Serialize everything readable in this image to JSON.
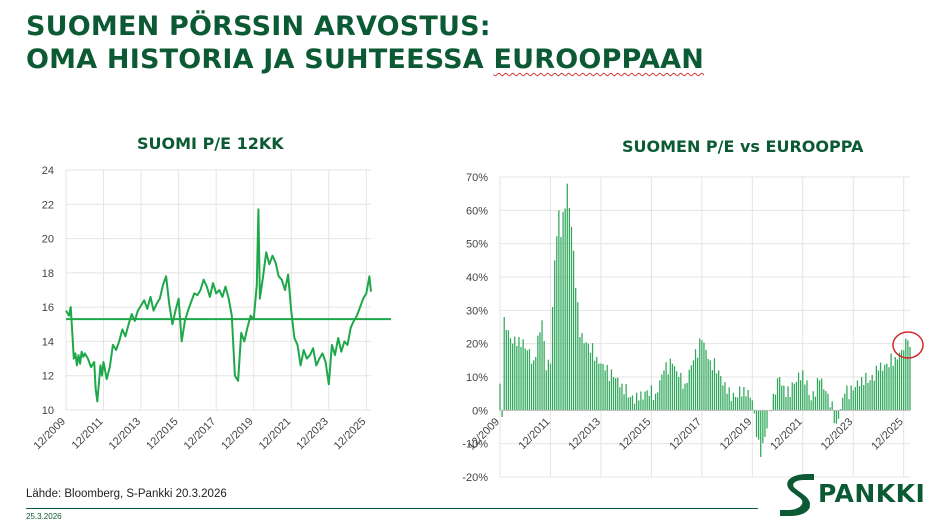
{
  "page": {
    "title_line1": "SUOMEN PÖRSSIN ARVOSTUS:",
    "title_line2_part1": "OMA HISTORIA JA SUHTEESSA ",
    "title_line2_part2": "EUROOPPAAN",
    "source": "Lähde: Bloomberg, S-Pankki 20.3.2026",
    "date": "25.3.2026",
    "logo_text": "PANKKI",
    "logo_icon": "s-pankki-s-logo-icon"
  },
  "colors": {
    "brand": "#0b5a34",
    "line": "#1ea84a",
    "bar": "#2fa85a",
    "highlight": "#d02a2a"
  },
  "chart_data": [
    {
      "type": "line",
      "title": "SUOMI P/E 12KK",
      "x_ticks": [
        "12/2009",
        "12/2011",
        "12/2013",
        "12/2015",
        "12/2017",
        "12/2019",
        "12/2021",
        "12/2023",
        "12/2025"
      ],
      "y_ticks": [
        "10",
        "12",
        "14",
        "16",
        "18",
        "20",
        "22",
        "24"
      ],
      "ylim": [
        10,
        24
      ],
      "xlim": [
        "2009-12",
        "2026-03"
      ],
      "reference_line": 15.3,
      "grid": true,
      "series": [
        {
          "x": [
            "2009-12",
            "2010-02",
            "2010-03",
            "2010-04",
            "2010-05",
            "2010-06",
            "2010-07",
            "2010-08",
            "2010-09",
            "2010-10",
            "2010-11",
            "2010-12",
            "2011-02",
            "2011-04",
            "2011-06",
            "2011-07",
            "2011-08",
            "2011-09",
            "2011-10",
            "2011-11",
            "2011-12",
            "2012-02",
            "2012-04",
            "2012-06",
            "2012-08",
            "2012-10",
            "2012-12",
            "2013-02",
            "2013-04",
            "2013-06",
            "2013-08",
            "2013-10",
            "2013-12",
            "2014-02",
            "2014-04",
            "2014-06",
            "2014-08",
            "2014-10",
            "2014-12",
            "2015-02",
            "2015-04",
            "2015-06",
            "2015-08",
            "2015-10",
            "2015-12",
            "2016-02",
            "2016-04",
            "2016-06",
            "2016-08",
            "2016-10",
            "2016-12",
            "2017-02",
            "2017-04",
            "2017-06",
            "2017-08",
            "2017-10",
            "2017-12",
            "2018-02",
            "2018-04",
            "2018-06",
            "2018-08",
            "2018-10",
            "2018-12",
            "2019-02",
            "2019-04",
            "2019-06",
            "2019-08",
            "2019-10",
            "2019-12",
            "2020-02",
            "2020-03",
            "2020-04",
            "2020-06",
            "2020-08",
            "2020-10",
            "2020-12",
            "2021-02",
            "2021-04",
            "2021-06",
            "2021-08",
            "2021-10",
            "2021-12",
            "2022-02",
            "2022-04",
            "2022-06",
            "2022-08",
            "2022-10",
            "2022-12",
            "2023-02",
            "2023-04",
            "2023-06",
            "2023-08",
            "2023-10",
            "2023-12",
            "2024-02",
            "2024-04",
            "2024-06",
            "2024-08",
            "2024-10",
            "2024-12",
            "2025-02",
            "2025-04",
            "2025-06",
            "2025-08",
            "2025-10",
            "2025-12",
            "2026-02",
            "2026-03"
          ],
          "y": [
            15.8,
            15.5,
            16.0,
            14.5,
            13.0,
            13.3,
            12.6,
            13.2,
            12.7,
            13.4,
            13.1,
            13.3,
            13.0,
            12.5,
            12.8,
            11.2,
            10.5,
            11.5,
            12.6,
            12.0,
            12.8,
            11.8,
            12.5,
            13.8,
            13.5,
            14.0,
            14.7,
            14.3,
            15.0,
            15.6,
            15.2,
            15.8,
            16.1,
            16.4,
            15.9,
            16.6,
            15.8,
            16.2,
            16.5,
            17.3,
            17.8,
            16.2,
            15.0,
            15.8,
            16.5,
            14.0,
            15.2,
            15.8,
            16.3,
            16.8,
            16.7,
            17.0,
            17.6,
            17.2,
            16.6,
            17.4,
            16.8,
            17.0,
            16.6,
            17.2,
            16.5,
            15.5,
            12.0,
            11.7,
            14.5,
            14.0,
            14.8,
            15.5,
            15.3,
            17.3,
            21.7,
            16.5,
            17.8,
            19.2,
            18.5,
            19.0,
            18.6,
            17.8,
            17.6,
            17.0,
            17.9,
            15.8,
            14.2,
            13.8,
            12.6,
            13.5,
            13.0,
            13.2,
            13.6,
            12.6,
            13.0,
            13.3,
            12.8,
            11.5,
            13.8,
            13.2,
            14.2,
            13.4,
            14.0,
            13.8,
            14.8,
            15.2,
            15.5,
            16.0,
            16.5,
            16.8,
            17.8,
            16.9
          ]
        }
      ]
    },
    {
      "type": "bar",
      "title": "SUOMEN P/E vs EUROOPPA",
      "x_ticks": [
        "12/2009",
        "12/2011",
        "12/2013",
        "12/2015",
        "12/2017",
        "12/2019",
        "12/2021",
        "12/2023",
        "12/2025"
      ],
      "y_ticks": [
        "-20%",
        "-10%",
        "0%",
        "10%",
        "20%",
        "30%",
        "40%",
        "50%",
        "60%",
        "70%"
      ],
      "ylim": [
        -20,
        70
      ],
      "xlim": [
        "2009-12",
        "2026-03"
      ],
      "grid": true,
      "highlight_circle_at": [
        "2026-03",
        19
      ],
      "series": [
        {
          "anchors_x": [
            "2009-12",
            "2010-01",
            "2010-02",
            "2010-04",
            "2010-06",
            "2010-09",
            "2011-01",
            "2011-04",
            "2011-08",
            "2011-10",
            "2011-12",
            "2012-02",
            "2012-04",
            "2012-05",
            "2012-08",
            "2012-10",
            "2013-02",
            "2013-06",
            "2013-10",
            "2014-02",
            "2014-06",
            "2014-10",
            "2015-02",
            "2015-06",
            "2015-10",
            "2016-02",
            "2016-06",
            "2016-10",
            "2017-01",
            "2017-04",
            "2017-08",
            "2017-12",
            "2018-04",
            "2018-08",
            "2018-12",
            "2019-04",
            "2019-08",
            "2019-12",
            "2020-02",
            "2020-04",
            "2020-06",
            "2020-10",
            "2021-01",
            "2021-04",
            "2021-08",
            "2021-12",
            "2022-04",
            "2022-08",
            "2022-12",
            "2023-04",
            "2023-08",
            "2023-12",
            "2024-04",
            "2024-08",
            "2024-12",
            "2025-04",
            "2025-08",
            "2025-12",
            "2026-02",
            "2026-03"
          ],
          "anchors_y": [
            8,
            -2,
            28,
            24,
            20,
            22,
            18,
            15,
            27,
            12,
            14,
            45,
            60,
            52,
            68,
            55,
            22,
            20,
            16,
            12,
            10,
            8,
            4,
            3,
            6,
            5,
            12,
            14,
            10,
            8,
            15,
            21,
            15,
            12,
            5,
            4,
            7,
            3,
            -8,
            -14,
            -8,
            5,
            10,
            4,
            8,
            12,
            3,
            9,
            5,
            -4,
            5,
            6,
            10,
            9,
            12,
            14,
            16,
            18,
            21,
            19
          ]
        }
      ]
    }
  ]
}
